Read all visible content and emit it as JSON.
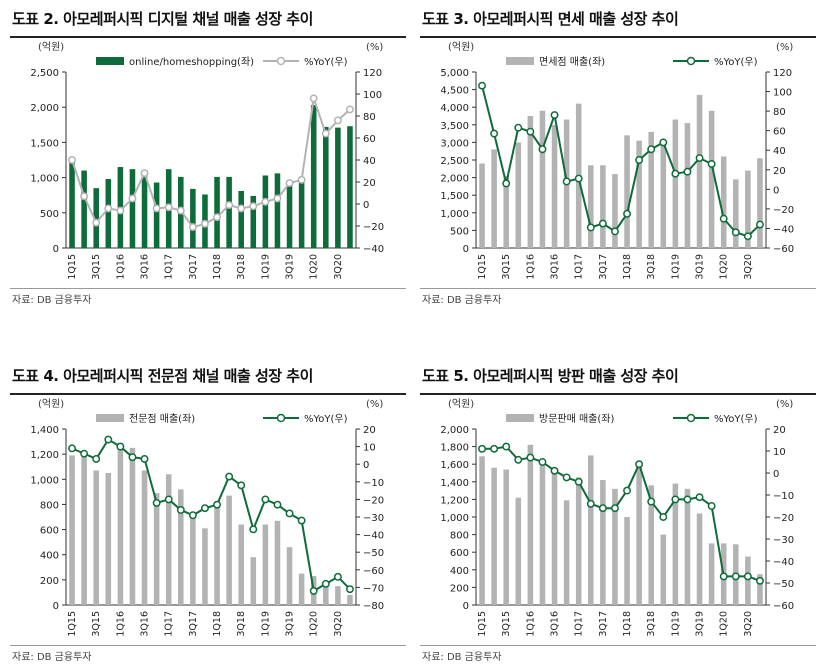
{
  "chart_data": [
    {
      "type": "bar+line",
      "title": "도표 2. 아모레퍼시픽 디지털 채널 매출 성장 추이",
      "source": "자료: DB 금융투자",
      "left_unit": "(억원)",
      "right_unit": "(%)",
      "categories": [
        "1Q15",
        "2Q15",
        "3Q15",
        "4Q15",
        "1Q16",
        "2Q16",
        "3Q16",
        "4Q16",
        "1Q17",
        "2Q17",
        "3Q17",
        "4Q17",
        "1Q18",
        "2Q18",
        "3Q18",
        "4Q18",
        "1Q19",
        "2Q19",
        "3Q19",
        "4Q19",
        "1Q20",
        "2Q20",
        "3Q20",
        "4Q20"
      ],
      "xtick_labels": [
        "1Q15",
        "3Q15",
        "1Q16",
        "3Q16",
        "1Q17",
        "3Q17",
        "1Q18",
        "3Q18",
        "1Q19",
        "3Q19",
        "1Q20",
        "3Q20"
      ],
      "bar_series": {
        "name": "online/homeshopping(좌)",
        "color": "#0e6b3a",
        "values": [
          1230,
          1100,
          850,
          980,
          1150,
          1120,
          1020,
          930,
          1120,
          1010,
          840,
          760,
          1010,
          1010,
          810,
          740,
          1030,
          1060,
          930,
          930,
          2030,
          1720,
          1710,
          1730
        ]
      },
      "line_series": {
        "name": "%YoY(우)",
        "color": "#b3b3b3",
        "marker": "#ffffff",
        "values": [
          40,
          7,
          -17,
          -4,
          -6,
          5,
          28,
          -4,
          -3,
          -6,
          -21,
          -18,
          -12,
          -1,
          -4,
          -2,
          2,
          5,
          19,
          22,
          96,
          64,
          76,
          86
        ]
      },
      "ylim_left": [
        0,
        2500
      ],
      "yticks_left": [
        0,
        500,
        1000,
        1500,
        2000,
        2500
      ],
      "ytick_labels_left": [
        "0",
        "500",
        "1,000",
        "1,500",
        "2,000",
        "2,500"
      ],
      "ylim_right": [
        -40,
        120
      ],
      "yticks_right": [
        -40,
        -20,
        0,
        20,
        40,
        60,
        80,
        100,
        120
      ],
      "ytick_labels_right": [
        "−40",
        "−20",
        "0",
        "20",
        "40",
        "60",
        "80",
        "100",
        "120"
      ],
      "legend_position": "top"
    },
    {
      "type": "bar+line",
      "title": "도표 3. 아모레퍼시픽 면세 매출 성장 추이",
      "source": "자료: DB 금융투자",
      "left_unit": "(억원)",
      "right_unit": "(%)",
      "categories": [
        "1Q15",
        "2Q15",
        "3Q15",
        "4Q15",
        "1Q16",
        "2Q16",
        "3Q16",
        "4Q16",
        "1Q17",
        "2Q17",
        "3Q17",
        "4Q17",
        "1Q18",
        "2Q18",
        "3Q18",
        "4Q18",
        "1Q19",
        "2Q19",
        "3Q19",
        "4Q19",
        "1Q20",
        "2Q20",
        "3Q20",
        "4Q20"
      ],
      "xtick_labels": [
        "1Q15",
        "3Q15",
        "1Q16",
        "3Q16",
        "1Q17",
        "3Q17",
        "1Q18",
        "3Q18",
        "1Q19",
        "3Q19",
        "1Q20",
        "3Q20"
      ],
      "bar_series": {
        "name": "면세점 매출(좌)",
        "color": "#b3b3b3",
        "values": [
          2400,
          2800,
          2050,
          3000,
          3750,
          3900,
          3500,
          3650,
          4100,
          2350,
          2350,
          2100,
          3200,
          3050,
          3300,
          3000,
          3650,
          3550,
          4350,
          3900,
          2600,
          1950,
          2200,
          2550
        ]
      },
      "line_series": {
        "name": "%YoY(우)",
        "color": "#0e6b3a",
        "marker": "#ffffff",
        "values": [
          106,
          57,
          6,
          63,
          59,
          41,
          76,
          8,
          11,
          -39,
          -35,
          -43,
          -25,
          30,
          41,
          48,
          16,
          18,
          32,
          26,
          -30,
          -44,
          -48,
          -36
        ]
      },
      "ylim_left": [
        0,
        5000
      ],
      "yticks_left": [
        0,
        500,
        1000,
        1500,
        2000,
        2500,
        3000,
        3500,
        4000,
        4500,
        5000
      ],
      "ytick_labels_left": [
        "0",
        "500",
        "1,000",
        "1,500",
        "2,000",
        "2,500",
        "3,000",
        "3,500",
        "4,000",
        "4,500",
        "5,000"
      ],
      "ylim_right": [
        -60,
        120
      ],
      "yticks_right": [
        -60,
        -40,
        -20,
        0,
        20,
        40,
        60,
        80,
        100,
        120
      ],
      "ytick_labels_right": [
        "−60",
        "−40",
        "−20",
        "0",
        "20",
        "40",
        "60",
        "80",
        "100",
        "120"
      ],
      "legend_position": "top"
    },
    {
      "type": "bar+line",
      "title": "도표 4. 아모레퍼시픽 전문점 채널 매출 성장 추이",
      "source": "자료: DB 금융투자",
      "left_unit": "(억원)",
      "right_unit": "(%)",
      "categories": [
        "1Q15",
        "2Q15",
        "3Q15",
        "4Q15",
        "1Q16",
        "2Q16",
        "3Q16",
        "4Q16",
        "1Q17",
        "2Q17",
        "3Q17",
        "4Q17",
        "1Q18",
        "2Q18",
        "3Q18",
        "4Q18",
        "1Q19",
        "2Q19",
        "3Q19",
        "4Q19",
        "1Q20",
        "2Q20",
        "3Q20",
        "4Q20"
      ],
      "xtick_labels": [
        "1Q15",
        "3Q15",
        "1Q16",
        "3Q16",
        "1Q17",
        "3Q17",
        "1Q18",
        "3Q18",
        "1Q19",
        "3Q19",
        "1Q20",
        "3Q20"
      ],
      "bar_series": {
        "name": "전문점 매출(좌)",
        "color": "#b3b3b3",
        "values": [
          1190,
          1220,
          1070,
          1050,
          1290,
          1250,
          1070,
          890,
          1040,
          920,
          720,
          610,
          810,
          870,
          640,
          380,
          640,
          670,
          460,
          250,
          230,
          160,
          150,
          80
        ]
      },
      "line_series": {
        "name": "%YoY(우)",
        "color": "#0e6b3a",
        "marker": "#ffffff",
        "values": [
          9,
          6,
          3,
          14,
          10,
          4,
          3,
          -22,
          -20,
          -26,
          -29,
          -25,
          -23,
          -7,
          -12,
          -37,
          -20,
          -23,
          -28,
          -32,
          -72,
          -68,
          -64,
          -71
        ]
      },
      "ylim_left": [
        0,
        1400
      ],
      "yticks_left": [
        0,
        200,
        400,
        600,
        800,
        1000,
        1200,
        1400
      ],
      "ytick_labels_left": [
        "0",
        "200",
        "400",
        "600",
        "800",
        "1,000",
        "1,200",
        "1,400"
      ],
      "ylim_right": [
        -80,
        20
      ],
      "yticks_right": [
        -80,
        -70,
        -60,
        -50,
        -40,
        -30,
        -20,
        -10,
        0,
        10,
        20
      ],
      "ytick_labels_right": [
        "−80",
        "−70",
        "−60",
        "−50",
        "−40",
        "−30",
        "−20",
        "−10",
        "0",
        "10",
        "20"
      ],
      "legend_position": "top"
    },
    {
      "type": "bar+line",
      "title": "도표 5. 아모레퍼시픽 방판 매출 성장 추이",
      "source": "자료: DB 금융투자",
      "left_unit": "(억원)",
      "right_unit": "(%)",
      "categories": [
        "1Q15",
        "2Q15",
        "3Q15",
        "4Q15",
        "1Q16",
        "2Q16",
        "3Q16",
        "4Q16",
        "1Q17",
        "2Q17",
        "3Q17",
        "4Q17",
        "1Q18",
        "2Q18",
        "3Q18",
        "4Q18",
        "1Q19",
        "2Q19",
        "3Q19",
        "4Q19",
        "1Q20",
        "2Q20",
        "3Q20",
        "4Q20"
      ],
      "xtick_labels": [
        "1Q15",
        "3Q15",
        "1Q16",
        "3Q16",
        "1Q17",
        "3Q17",
        "1Q18",
        "3Q18",
        "1Q19",
        "3Q19",
        "1Q20",
        "3Q20"
      ],
      "bar_series": {
        "name": "방문판매 매출(좌)",
        "color": "#b3b3b3",
        "values": [
          1690,
          1560,
          1540,
          1220,
          1820,
          1640,
          1490,
          1190,
          1450,
          1700,
          1420,
          1320,
          1000,
          1570,
          1360,
          800,
          1380,
          1320,
          1040,
          700,
          700,
          690,
          550,
          350
        ]
      },
      "line_series": {
        "name": "%YoY(우)",
        "color": "#0e6b3a",
        "marker": "#ffffff",
        "values": [
          11,
          11,
          12,
          6,
          7,
          5,
          1,
          -2,
          -4,
          -14,
          -16,
          -16,
          -8,
          4,
          -13,
          -20,
          -12,
          -12,
          -11,
          -15,
          -47,
          -47,
          -47,
          -49
        ]
      },
      "ylim_left": [
        0,
        2000
      ],
      "yticks_left": [
        0,
        200,
        400,
        600,
        800,
        1000,
        1200,
        1400,
        1600,
        1800,
        2000
      ],
      "ytick_labels_left": [
        "0",
        "200",
        "400",
        "600",
        "800",
        "1,000",
        "1,200",
        "1,400",
        "1,600",
        "1,800",
        "2,000"
      ],
      "ylim_right": [
        -60,
        20
      ],
      "yticks_right": [
        -60,
        -50,
        -40,
        -30,
        -20,
        -10,
        0,
        10,
        20
      ],
      "ytick_labels_right": [
        "−60",
        "−50",
        "−40",
        "−30",
        "−20",
        "−10",
        "0",
        "10",
        "20"
      ],
      "legend_position": "top"
    }
  ]
}
